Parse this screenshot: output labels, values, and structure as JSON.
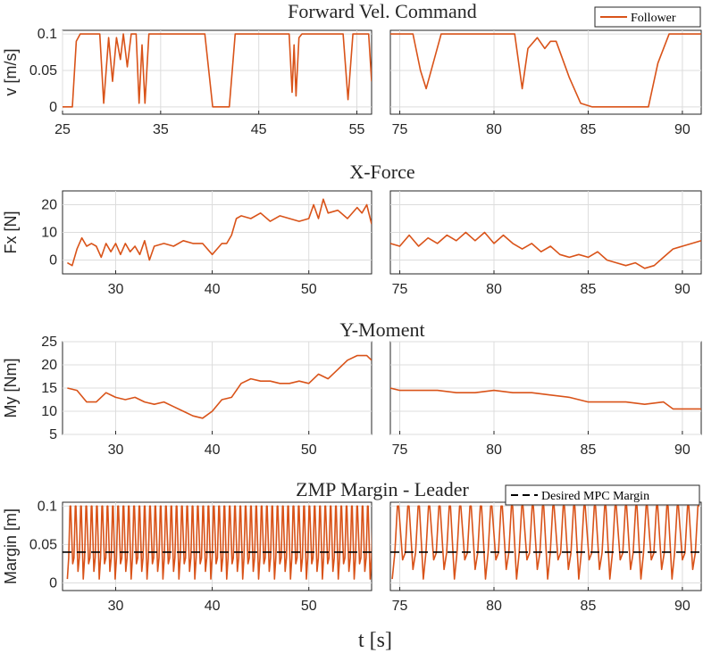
{
  "colors": {
    "follower": "#d95319",
    "reference": "#000000",
    "grid": "#dcdcdc",
    "axis": "#262626"
  },
  "xlabel": "t [s]",
  "chart_data": [
    {
      "type": "line",
      "title": "Forward Vel. Command",
      "ylabel": "v [m/s]",
      "legend": {
        "entries": [
          "Follower"
        ],
        "placement": "top-right"
      },
      "panels": [
        {
          "xlim": [
            25,
            56.5
          ],
          "ylim": [
            -0.01,
            0.105
          ],
          "xticks": [
            25,
            35,
            45,
            55
          ],
          "yticks": [
            0,
            0.05,
            0.1
          ],
          "xticklabels": [
            "25",
            "35",
            "45",
            "55"
          ],
          "yticklabels": [
            "0",
            "0.05",
            "0.1"
          ],
          "series": [
            {
              "name": "Follower",
              "x": [
                25,
                26.0,
                26.4,
                26.8,
                28.8,
                29.2,
                29.7,
                30.1,
                30.5,
                30.9,
                31.2,
                31.6,
                32.0,
                32.5,
                32.8,
                33.1,
                33.4,
                33.8,
                34.2,
                39.5,
                40.3,
                42.0,
                42.6,
                48.1,
                48.4,
                48.6,
                48.8,
                49.1,
                49.4,
                53.6,
                54.1,
                54.6,
                55.2,
                56.2,
                56.5
              ],
              "values": [
                0,
                0,
                0.09,
                0.1,
                0.1,
                0.005,
                0.095,
                0.035,
                0.095,
                0.065,
                0.1,
                0.055,
                0.1,
                0.1,
                0.005,
                0.085,
                0.005,
                0.1,
                0.1,
                0.1,
                0,
                0,
                0.1,
                0.1,
                0.02,
                0.085,
                0.015,
                0.095,
                0.1,
                0.1,
                0.01,
                0.1,
                0.1,
                0.1,
                0.035
              ]
            }
          ]
        },
        {
          "xlim": [
            74.5,
            91
          ],
          "ylim": [
            -0.01,
            0.105
          ],
          "xticks": [
            75,
            80,
            85,
            90
          ],
          "yticks": [
            0,
            0.05,
            0.1
          ],
          "xticklabels": [
            "75",
            "80",
            "85",
            "90"
          ],
          "yticklabels": [],
          "series": [
            {
              "name": "Follower",
              "x": [
                74.5,
                75.7,
                76.1,
                76.4,
                77.2,
                81.1,
                81.5,
                81.8,
                82.3,
                82.7,
                83.0,
                83.3,
                84.0,
                84.6,
                85.2,
                88.2,
                88.7,
                89.3,
                91
              ],
              "values": [
                0.1,
                0.1,
                0.05,
                0.025,
                0.1,
                0.1,
                0.025,
                0.08,
                0.095,
                0.08,
                0.09,
                0.09,
                0.04,
                0.005,
                0,
                0,
                0.06,
                0.1,
                0.1
              ]
            }
          ]
        }
      ]
    },
    {
      "type": "line",
      "title": "X-Force",
      "ylabel": "Fx [N]",
      "panels": [
        {
          "xlim": [
            24.5,
            56.5
          ],
          "ylim": [
            -5,
            25
          ],
          "xticks": [
            30,
            40,
            50
          ],
          "yticks": [
            0,
            10,
            20
          ],
          "xticklabels": [
            "30",
            "40",
            "50"
          ],
          "yticklabels": [
            "0",
            "10",
            "20"
          ],
          "series": [
            {
              "name": "Follower",
              "x": [
                25,
                25.5,
                26,
                26.5,
                27,
                27.5,
                28,
                28.5,
                29,
                29.5,
                30,
                30.5,
                31,
                31.5,
                32,
                32.5,
                33,
                33.5,
                34,
                35,
                36,
                37,
                38,
                39,
                40,
                40.5,
                41,
                41.5,
                42,
                42.5,
                43,
                44,
                45,
                46,
                47,
                48,
                49,
                50,
                50.5,
                51,
                51.5,
                52,
                53,
                54,
                55,
                55.5,
                56,
                56.5
              ],
              "values": [
                -1,
                -2,
                4,
                8,
                5,
                6,
                5,
                1,
                6,
                3,
                6,
                2,
                6,
                3,
                5,
                2,
                7,
                0,
                5,
                6,
                5,
                7,
                6,
                6,
                2,
                4,
                6,
                6,
                9,
                15,
                16,
                15,
                17,
                14,
                16,
                15,
                14,
                15,
                20,
                15,
                22,
                17,
                18,
                15,
                19,
                17,
                20,
                13
              ]
            }
          ]
        },
        {
          "xlim": [
            74.5,
            91
          ],
          "ylim": [
            -5,
            25
          ],
          "xticks": [
            75,
            80,
            85,
            90
          ],
          "yticks": [
            0,
            10,
            20
          ],
          "xticklabels": [
            "75",
            "80",
            "85",
            "90"
          ],
          "yticklabels": [],
          "series": [
            {
              "name": "Follower",
              "x": [
                74.5,
                75,
                75.5,
                76,
                76.5,
                77,
                77.5,
                78,
                78.5,
                79,
                79.5,
                80,
                80.5,
                81,
                81.5,
                82,
                82.5,
                83,
                83.5,
                84,
                84.5,
                85,
                85.5,
                86,
                86.5,
                87,
                87.5,
                88,
                88.5,
                89,
                89.5,
                90,
                90.5,
                91
              ],
              "values": [
                6,
                5,
                9,
                5,
                8,
                6,
                9,
                7,
                10,
                7,
                10,
                6,
                9,
                6,
                4,
                6,
                3,
                5,
                2,
                1,
                2,
                1,
                3,
                0,
                -1,
                -2,
                -1,
                -3,
                -2,
                1,
                4,
                5,
                6,
                7
              ]
            }
          ]
        }
      ]
    },
    {
      "type": "line",
      "title": "Y-Moment",
      "ylabel": "My [Nm]",
      "panels": [
        {
          "xlim": [
            24.5,
            56.5
          ],
          "ylim": [
            5,
            25
          ],
          "xticks": [
            30,
            40,
            50
          ],
          "yticks": [
            5,
            10,
            15,
            20,
            25
          ],
          "xticklabels": [
            "30",
            "40",
            "50"
          ],
          "yticklabels": [
            "5",
            "10",
            "15",
            "20",
            "25"
          ],
          "series": [
            {
              "name": "Follower",
              "x": [
                25,
                26,
                27,
                28,
                29,
                30,
                31,
                32,
                33,
                34,
                35,
                36,
                37,
                38,
                39,
                40,
                41,
                42,
                43,
                44,
                45,
                46,
                47,
                48,
                49,
                50,
                51,
                52,
                53,
                54,
                55,
                56,
                56.5
              ],
              "values": [
                15,
                14.5,
                12,
                12,
                14,
                13,
                12.5,
                13,
                12,
                11.5,
                12,
                11,
                10,
                9,
                8.5,
                10,
                12.5,
                13,
                16,
                17,
                16.5,
                16.5,
                16,
                16,
                16.5,
                16,
                18,
                17,
                19,
                21,
                22,
                22,
                21
              ]
            }
          ]
        },
        {
          "xlim": [
            74.5,
            91
          ],
          "ylim": [
            5,
            25
          ],
          "xticks": [
            75,
            80,
            85,
            90
          ],
          "yticks": [
            5,
            10,
            15,
            20,
            25
          ],
          "xticklabels": [
            "75",
            "80",
            "85",
            "90"
          ],
          "yticklabels": [],
          "series": [
            {
              "name": "Follower",
              "x": [
                74.5,
                75,
                76,
                77,
                78,
                79,
                80,
                81,
                82,
                83,
                84,
                85,
                86,
                87,
                88,
                89,
                89.5,
                90,
                91
              ],
              "values": [
                15,
                14.5,
                14.5,
                14.5,
                14,
                14,
                14.5,
                14,
                14,
                13.5,
                13,
                12,
                12,
                12,
                11.5,
                12,
                10.5,
                10.5,
                10.5
              ]
            }
          ]
        }
      ]
    },
    {
      "type": "line",
      "title": "ZMP Margin - Leader",
      "ylabel": "Margin [m]",
      "legend": {
        "entries": [
          "Desired MPC Margin"
        ],
        "placement": "top-right"
      },
      "desired_margin": 0.04,
      "panels": [
        {
          "xlim": [
            24.5,
            56.5
          ],
          "ylim": [
            -0.01,
            0.105
          ],
          "xticks": [
            30,
            40,
            50
          ],
          "yticks": [
            0,
            0.05,
            0.1
          ],
          "xticklabels": [
            "30",
            "40",
            "50"
          ],
          "yticklabels": [
            "0",
            "0.05",
            "0.1"
          ],
          "sawtooth": {
            "x_start": 25,
            "x_end": 56.5,
            "period": 0.55,
            "peak": 0.1,
            "low": 0.005,
            "mid": 0.025
          }
        },
        {
          "xlim": [
            74.5,
            91
          ],
          "ylim": [
            -0.01,
            0.105
          ],
          "xticks": [
            75,
            80,
            85,
            90
          ],
          "yticks": [
            0,
            0.05,
            0.1
          ],
          "xticklabels": [
            "75",
            "80",
            "85",
            "90"
          ],
          "yticklabels": [],
          "sawtooth": {
            "x_start": 74.6,
            "x_end": 91,
            "period": 0.55,
            "peak": 0.1,
            "low": 0.005,
            "mid": 0.03
          }
        }
      ]
    }
  ]
}
